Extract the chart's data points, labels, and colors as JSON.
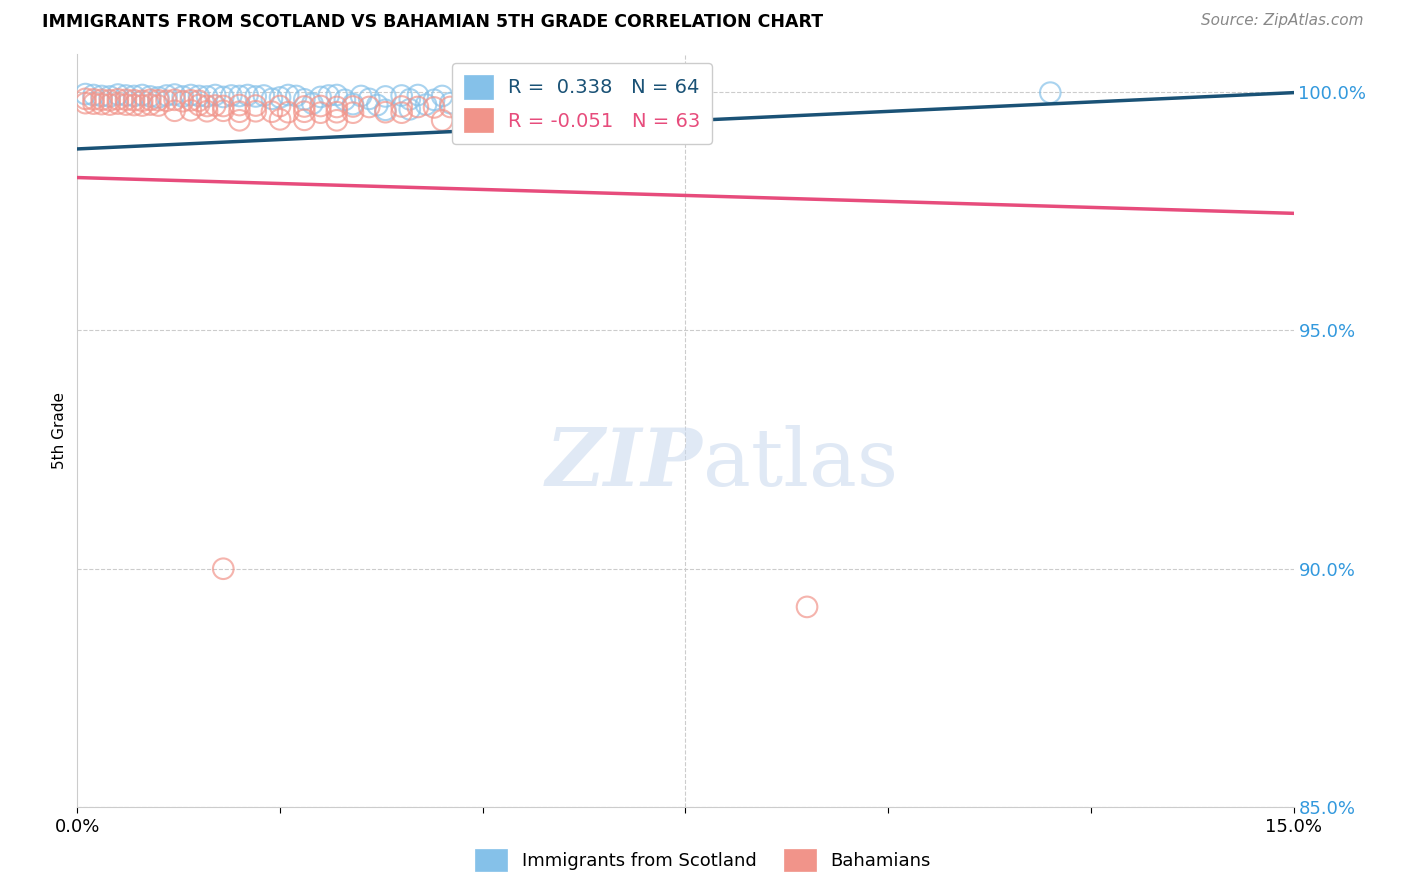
{
  "title": "IMMIGRANTS FROM SCOTLAND VS BAHAMIAN 5TH GRADE CORRELATION CHART",
  "source": "Source: ZipAtlas.com",
  "ylabel": "5th Grade",
  "xlim": [
    0.0,
    0.15
  ],
  "ylim": [
    0.875,
    1.008
  ],
  "y_tick_vals": [
    0.85,
    0.9,
    0.95,
    1.0
  ],
  "y_tick_labels": [
    "85.0%",
    "90.0%",
    "95.0%",
    "100.0%"
  ],
  "legend_blue_text": "R =  0.338   N = 64",
  "legend_pink_text": "R = -0.051   N = 63",
  "blue_color": "#85c1e9",
  "pink_color": "#f1948a",
  "blue_line_color": "#1a5276",
  "pink_line_color": "#e74c7c",
  "blue_scatter": [
    [
      0.001,
      0.9995
    ],
    [
      0.002,
      0.9993
    ],
    [
      0.003,
      0.9991
    ],
    [
      0.004,
      0.999
    ],
    [
      0.005,
      0.9994
    ],
    [
      0.006,
      0.9992
    ],
    [
      0.007,
      0.9991
    ],
    [
      0.008,
      0.9993
    ],
    [
      0.009,
      0.999
    ],
    [
      0.01,
      0.9988
    ],
    [
      0.011,
      0.9992
    ],
    [
      0.012,
      0.9994
    ],
    [
      0.013,
      0.999
    ],
    [
      0.014,
      0.9993
    ],
    [
      0.015,
      0.9991
    ],
    [
      0.016,
      0.999
    ],
    [
      0.017,
      0.9993
    ],
    [
      0.018,
      0.9989
    ],
    [
      0.019,
      0.9992
    ],
    [
      0.02,
      0.9991
    ],
    [
      0.021,
      0.9993
    ],
    [
      0.022,
      0.999
    ],
    [
      0.023,
      0.9992
    ],
    [
      0.025,
      0.9988
    ],
    [
      0.026,
      0.9993
    ],
    [
      0.027,
      0.9991
    ],
    [
      0.03,
      0.9989
    ],
    [
      0.031,
      0.9992
    ],
    [
      0.032,
      0.9993
    ],
    [
      0.035,
      0.9991
    ],
    [
      0.038,
      0.999
    ],
    [
      0.04,
      0.9992
    ],
    [
      0.042,
      0.9993
    ],
    [
      0.045,
      0.9991
    ],
    [
      0.048,
      0.999
    ],
    [
      0.05,
      0.9993
    ],
    [
      0.055,
      0.9992
    ],
    [
      0.058,
      0.9993
    ],
    [
      0.06,
      0.9994
    ],
    [
      0.062,
      0.9991
    ],
    [
      0.065,
      0.9993
    ],
    [
      0.068,
      0.999
    ],
    [
      0.07,
      0.9992
    ],
    [
      0.024,
      0.9985
    ],
    [
      0.028,
      0.9984
    ],
    [
      0.033,
      0.9983
    ],
    [
      0.036,
      0.9985
    ],
    [
      0.041,
      0.9984
    ],
    [
      0.044,
      0.9983
    ],
    [
      0.049,
      0.9984
    ],
    [
      0.052,
      0.9985
    ],
    [
      0.055,
      0.9983
    ],
    [
      0.029,
      0.9975
    ],
    [
      0.034,
      0.9974
    ],
    [
      0.037,
      0.9972
    ],
    [
      0.043,
      0.9973
    ],
    [
      0.05,
      0.9972
    ],
    [
      0.046,
      0.9976
    ],
    [
      0.038,
      0.9962
    ],
    [
      0.041,
      0.9963
    ],
    [
      0.12,
      0.9998
    ]
  ],
  "pink_scatter": [
    [
      0.001,
      0.9985
    ],
    [
      0.002,
      0.9984
    ],
    [
      0.003,
      0.9983
    ],
    [
      0.004,
      0.9982
    ],
    [
      0.005,
      0.9984
    ],
    [
      0.006,
      0.9983
    ],
    [
      0.007,
      0.9982
    ],
    [
      0.008,
      0.9981
    ],
    [
      0.009,
      0.9983
    ],
    [
      0.01,
      0.9982
    ],
    [
      0.011,
      0.9981
    ],
    [
      0.012,
      0.9983
    ],
    [
      0.013,
      0.998
    ],
    [
      0.014,
      0.9982
    ],
    [
      0.015,
      0.9981
    ],
    [
      0.001,
      0.9976
    ],
    [
      0.002,
      0.9975
    ],
    [
      0.003,
      0.9974
    ],
    [
      0.004,
      0.9973
    ],
    [
      0.005,
      0.9975
    ],
    [
      0.006,
      0.9973
    ],
    [
      0.007,
      0.9972
    ],
    [
      0.008,
      0.9971
    ],
    [
      0.009,
      0.9973
    ],
    [
      0.01,
      0.9971
    ],
    [
      0.015,
      0.9972
    ],
    [
      0.016,
      0.997
    ],
    [
      0.017,
      0.9971
    ],
    [
      0.018,
      0.997
    ],
    [
      0.02,
      0.9972
    ],
    [
      0.022,
      0.9971
    ],
    [
      0.025,
      0.997
    ],
    [
      0.028,
      0.9969
    ],
    [
      0.03,
      0.997
    ],
    [
      0.032,
      0.9968
    ],
    [
      0.034,
      0.9969
    ],
    [
      0.036,
      0.9968
    ],
    [
      0.04,
      0.9969
    ],
    [
      0.042,
      0.9968
    ],
    [
      0.044,
      0.9967
    ],
    [
      0.046,
      0.9968
    ],
    [
      0.012,
      0.996
    ],
    [
      0.014,
      0.9961
    ],
    [
      0.016,
      0.9959
    ],
    [
      0.018,
      0.996
    ],
    [
      0.02,
      0.9958
    ],
    [
      0.022,
      0.9959
    ],
    [
      0.024,
      0.9958
    ],
    [
      0.026,
      0.9957
    ],
    [
      0.028,
      0.9958
    ],
    [
      0.03,
      0.9956
    ],
    [
      0.032,
      0.9957
    ],
    [
      0.034,
      0.9956
    ],
    [
      0.038,
      0.9957
    ],
    [
      0.04,
      0.9956
    ],
    [
      0.048,
      0.996
    ],
    [
      0.05,
      0.9958
    ],
    [
      0.055,
      0.9958
    ],
    [
      0.058,
      0.9957
    ],
    [
      0.02,
      0.994
    ],
    [
      0.025,
      0.9942
    ],
    [
      0.028,
      0.9941
    ],
    [
      0.032,
      0.994
    ],
    [
      0.045,
      0.994
    ],
    [
      0.018,
      0.9
    ],
    [
      0.09,
      0.892
    ]
  ],
  "blue_line": [
    [
      0.0,
      0.988
    ],
    [
      0.15,
      0.9998
    ]
  ],
  "pink_line": [
    [
      0.0,
      0.982
    ],
    [
      0.15,
      0.9745
    ]
  ]
}
